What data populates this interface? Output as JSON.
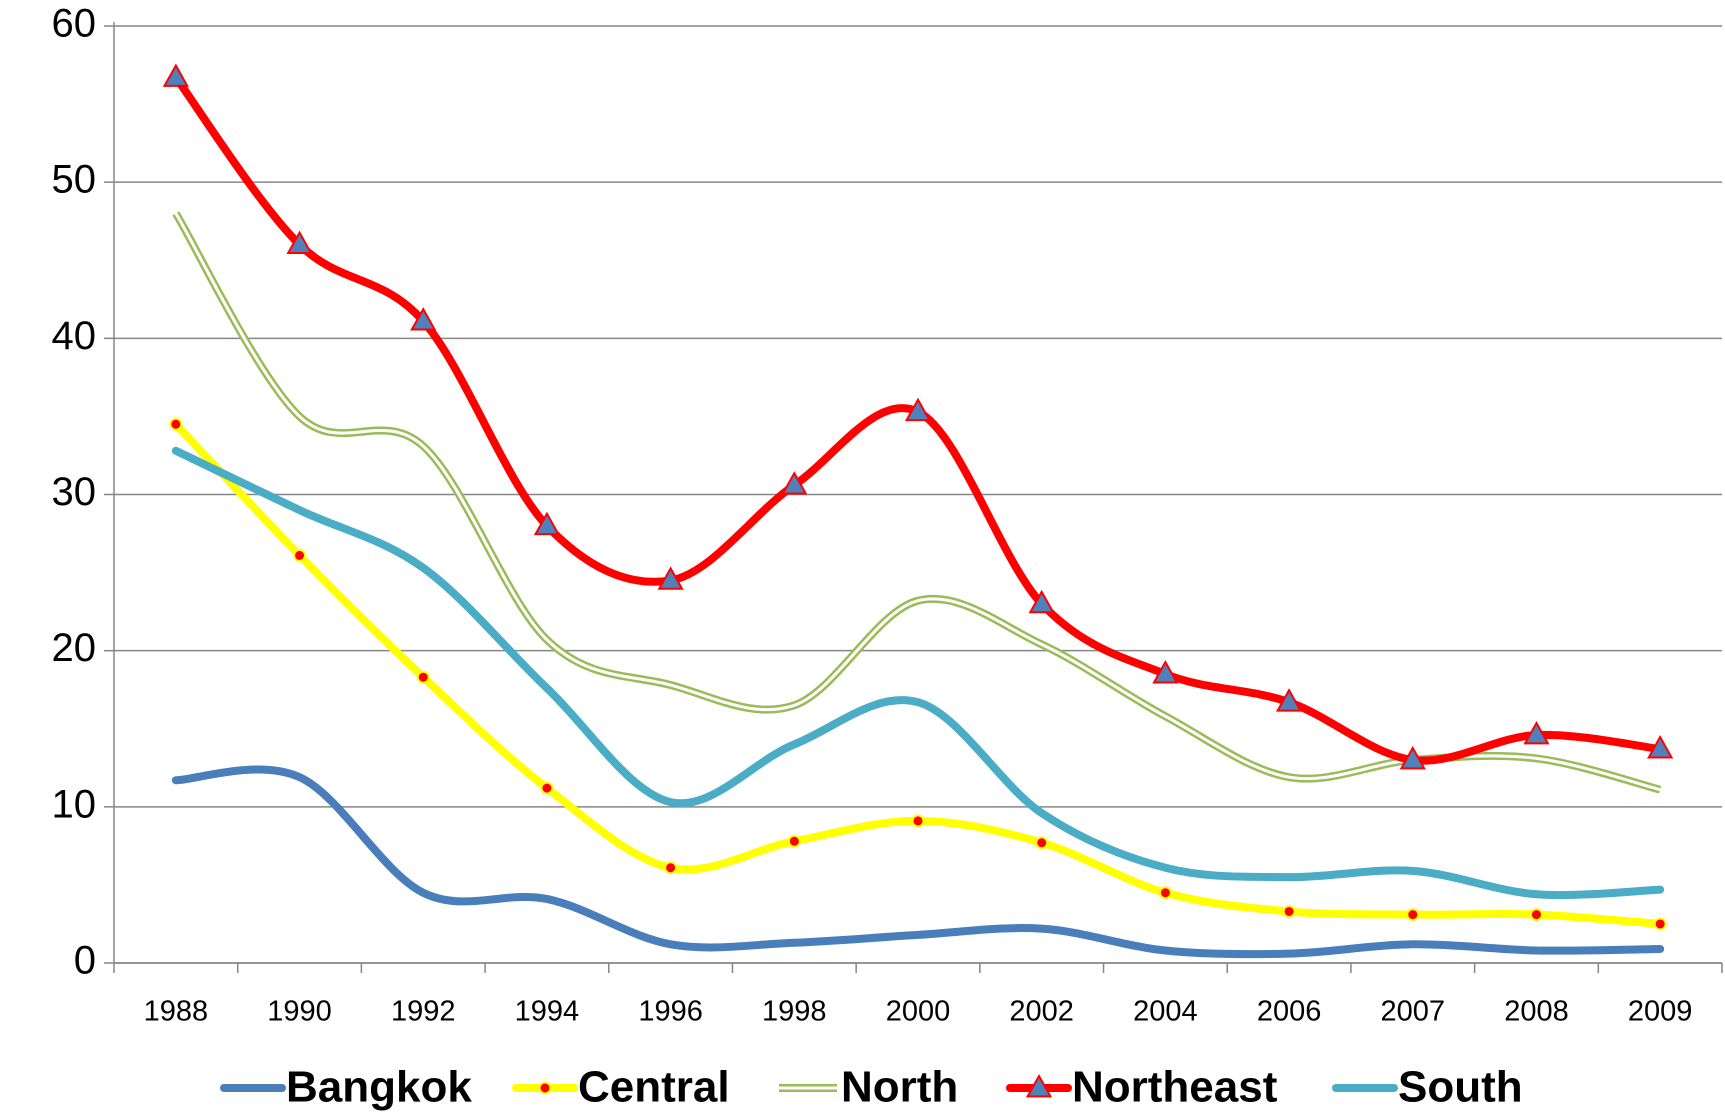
{
  "chart_data": {
    "type": "line",
    "categories": [
      "1988",
      "1990",
      "1992",
      "1994",
      "1996",
      "1998",
      "2000",
      "2002",
      "2004",
      "2006",
      "2007",
      "2008",
      "2009"
    ],
    "series": [
      {
        "name": "Bangkok",
        "color": "#4a7ebb",
        "values": [
          11.7,
          11.9,
          4.5,
          4.1,
          1.2,
          1.3,
          1.8,
          2.2,
          0.8,
          0.6,
          1.2,
          0.8,
          0.9
        ]
      },
      {
        "name": "Central",
        "color": "#ffff00",
        "values": [
          34.5,
          26.1,
          18.3,
          11.2,
          6.1,
          7.8,
          9.1,
          7.7,
          4.5,
          3.3,
          3.1,
          3.1,
          2.5
        ]
      },
      {
        "name": "North",
        "color": "#9bbb59",
        "values": [
          48,
          35.0,
          33.1,
          20.7,
          17.8,
          16.5,
          23.2,
          20.4,
          15.8,
          11.9,
          13.0,
          13.1,
          11.1
        ]
      },
      {
        "name": "Northeast",
        "color": "#ff0000",
        "values": [
          56.7,
          46.0,
          41.1,
          28.0,
          24.5,
          30.6,
          35.3,
          23.0,
          18.5,
          16.7,
          13.0,
          14.6,
          13.7
        ]
      },
      {
        "name": "South",
        "color": "#4bacc6",
        "values": [
          32.8,
          29.0,
          25.3,
          17.6,
          10.3,
          14.0,
          16.7,
          9.6,
          6.1,
          5.5,
          5.9,
          4.4,
          4.7
        ]
      }
    ],
    "ylim": [
      0,
      60
    ],
    "yticks": [
      0,
      10,
      20,
      30,
      40,
      50,
      60
    ],
    "grid": true,
    "legend": "bottom"
  }
}
